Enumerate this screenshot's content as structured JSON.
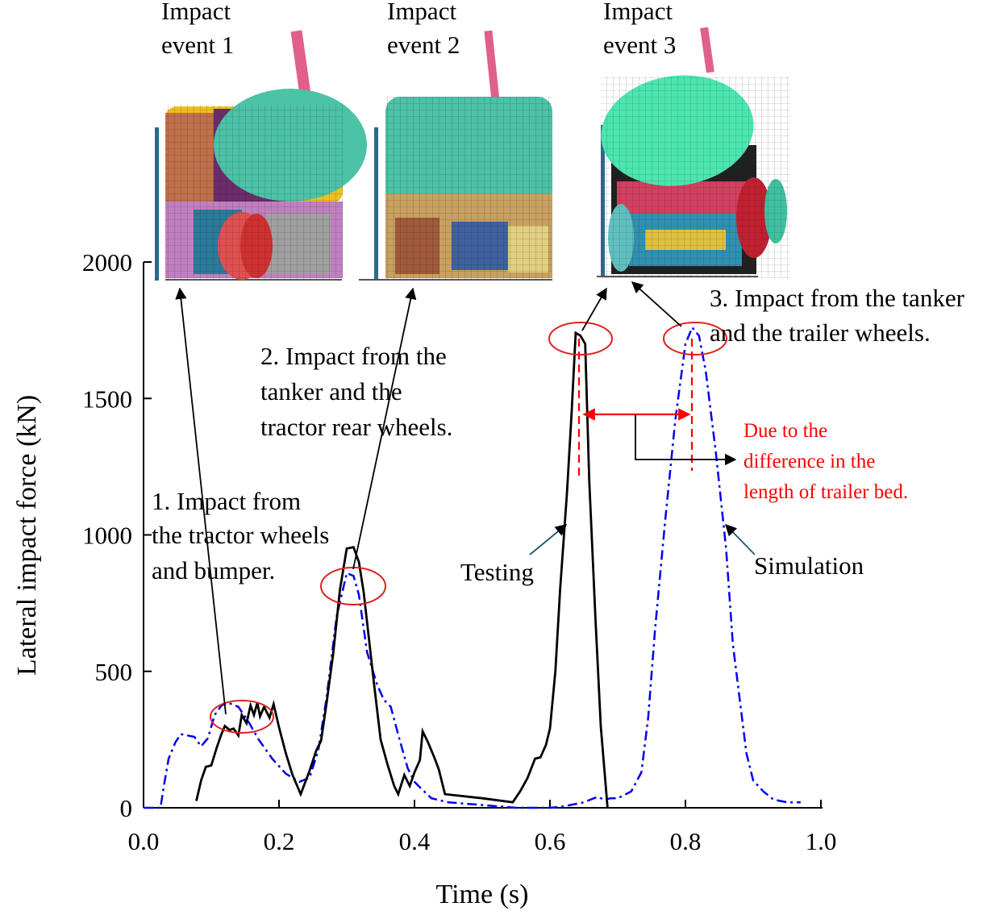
{
  "chart_data": {
    "type": "line",
    "xlabel": "Time (s)",
    "ylabel": "Lateral impact force (kN)",
    "xlim": [
      0.0,
      1.0
    ],
    "ylim": [
      0,
      2000
    ],
    "x_ticks": [
      "0.0",
      "0.2",
      "0.4",
      "0.6",
      "0.8",
      "1.0"
    ],
    "y_ticks": [
      "0",
      "500",
      "1000",
      "1500",
      "2000"
    ],
    "grid": false,
    "series": [
      {
        "name": "Testing",
        "color": "#000000",
        "style": "solid",
        "points": [
          [
            0.078,
            25
          ],
          [
            0.085,
            100
          ],
          [
            0.092,
            150
          ],
          [
            0.1,
            155
          ],
          [
            0.108,
            220
          ],
          [
            0.115,
            270
          ],
          [
            0.12,
            300
          ],
          [
            0.127,
            285
          ],
          [
            0.133,
            290
          ],
          [
            0.14,
            265
          ],
          [
            0.145,
            340
          ],
          [
            0.152,
            310
          ],
          [
            0.158,
            375
          ],
          [
            0.163,
            340
          ],
          [
            0.168,
            385
          ],
          [
            0.172,
            335
          ],
          [
            0.178,
            370
          ],
          [
            0.186,
            330
          ],
          [
            0.192,
            380
          ],
          [
            0.2,
            295
          ],
          [
            0.21,
            200
          ],
          [
            0.22,
            120
          ],
          [
            0.232,
            50
          ],
          [
            0.245,
            135
          ],
          [
            0.255,
            210
          ],
          [
            0.262,
            245
          ],
          [
            0.27,
            380
          ],
          [
            0.28,
            565
          ],
          [
            0.29,
            800
          ],
          [
            0.3,
            950
          ],
          [
            0.31,
            955
          ],
          [
            0.318,
            900
          ],
          [
            0.325,
            790
          ],
          [
            0.34,
            460
          ],
          [
            0.35,
            250
          ],
          [
            0.36,
            160
          ],
          [
            0.37,
            80
          ],
          [
            0.376,
            50
          ],
          [
            0.385,
            120
          ],
          [
            0.393,
            80
          ],
          [
            0.4,
            130
          ],
          [
            0.408,
            175
          ],
          [
            0.412,
            280
          ],
          [
            0.42,
            240
          ],
          [
            0.43,
            180
          ],
          [
            0.436,
            140
          ],
          [
            0.445,
            50
          ],
          [
            0.5,
            35
          ],
          [
            0.545,
            20
          ],
          [
            0.556,
            60
          ],
          [
            0.567,
            110
          ],
          [
            0.578,
            180
          ],
          [
            0.586,
            185
          ],
          [
            0.594,
            230
          ],
          [
            0.6,
            290
          ],
          [
            0.608,
            500
          ],
          [
            0.615,
            800
          ],
          [
            0.625,
            1150
          ],
          [
            0.632,
            1450
          ],
          [
            0.638,
            1740
          ],
          [
            0.645,
            1730
          ],
          [
            0.652,
            1700
          ],
          [
            0.658,
            1200
          ],
          [
            0.667,
            700
          ],
          [
            0.675,
            300
          ],
          [
            0.685,
            0
          ]
        ]
      },
      {
        "name": "Simulation",
        "color": "#0000ee",
        "style": "dash-dot",
        "points": [
          [
            0.0,
            0
          ],
          [
            0.025,
            0
          ],
          [
            0.03,
            80
          ],
          [
            0.037,
            180
          ],
          [
            0.047,
            240
          ],
          [
            0.055,
            270
          ],
          [
            0.065,
            265
          ],
          [
            0.075,
            260
          ],
          [
            0.085,
            225
          ],
          [
            0.095,
            255
          ],
          [
            0.105,
            340
          ],
          [
            0.115,
            375
          ],
          [
            0.125,
            385
          ],
          [
            0.14,
            370
          ],
          [
            0.155,
            315
          ],
          [
            0.17,
            250
          ],
          [
            0.19,
            180
          ],
          [
            0.21,
            125
          ],
          [
            0.23,
            95
          ],
          [
            0.245,
            110
          ],
          [
            0.258,
            210
          ],
          [
            0.27,
            400
          ],
          [
            0.285,
            700
          ],
          [
            0.3,
            860
          ],
          [
            0.31,
            850
          ],
          [
            0.318,
            780
          ],
          [
            0.33,
            570
          ],
          [
            0.345,
            450
          ],
          [
            0.355,
            395
          ],
          [
            0.365,
            370
          ],
          [
            0.378,
            250
          ],
          [
            0.39,
            145
          ],
          [
            0.4,
            95
          ],
          [
            0.41,
            70
          ],
          [
            0.425,
            35
          ],
          [
            0.45,
            20
          ],
          [
            0.5,
            10
          ],
          [
            0.55,
            0
          ],
          [
            0.6,
            0
          ],
          [
            0.62,
            5
          ],
          [
            0.65,
            20
          ],
          [
            0.67,
            40
          ],
          [
            0.68,
            30
          ],
          [
            0.69,
            35
          ],
          [
            0.7,
            35
          ],
          [
            0.72,
            60
          ],
          [
            0.735,
            130
          ],
          [
            0.745,
            330
          ],
          [
            0.755,
            650
          ],
          [
            0.77,
            1050
          ],
          [
            0.785,
            1420
          ],
          [
            0.8,
            1700
          ],
          [
            0.81,
            1760
          ],
          [
            0.82,
            1730
          ],
          [
            0.83,
            1600
          ],
          [
            0.845,
            1300
          ],
          [
            0.86,
            950
          ],
          [
            0.87,
            600
          ],
          [
            0.88,
            400
          ],
          [
            0.89,
            200
          ],
          [
            0.9,
            100
          ],
          [
            0.915,
            60
          ],
          [
            0.93,
            30
          ],
          [
            0.95,
            20
          ],
          [
            0.97,
            20
          ]
        ]
      }
    ],
    "annotations": {
      "event1_title": [
        "Impact",
        "event 1"
      ],
      "event2_title": [
        "Impact",
        "event 2"
      ],
      "event3_title": [
        "Impact",
        "event 3"
      ],
      "note1": [
        "1. Impact from",
        "the tractor wheels",
        "and bumper."
      ],
      "note2": [
        "2. Impact from the",
        "tanker and the",
        "tractor rear wheels."
      ],
      "note3": [
        "3. Impact from the tanker",
        "and the trailer wheels."
      ],
      "testing_label": "Testing",
      "simulation_label": "Simulation",
      "delay_note": [
        "Due to the",
        "difference in the",
        "length of trailer bed."
      ],
      "delay_note_color": "#ff0000",
      "circle_color": "#e02020"
    }
  }
}
